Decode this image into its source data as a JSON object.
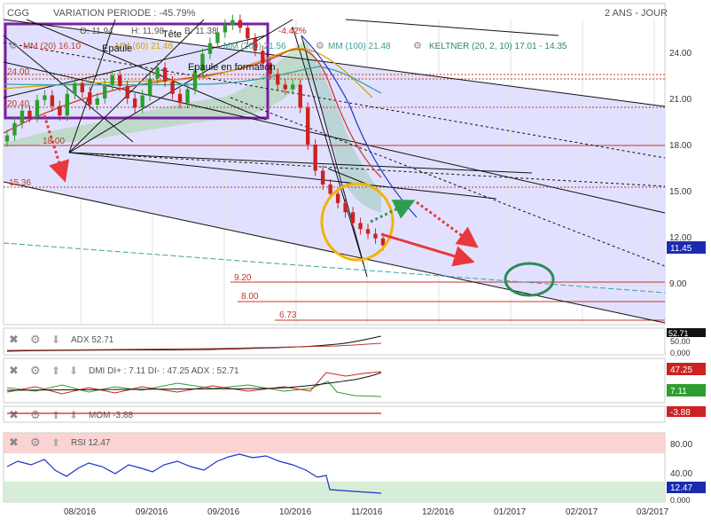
{
  "header": {
    "symbol": "CGG",
    "variation": "VARIATION PERIODE : -45.79%",
    "period": "2 ANS - JOUR"
  },
  "ohlc": {
    "o": "O: 11.94",
    "h": "H: 11.98",
    "b": "B: 11.38",
    "c": "C: 11.45",
    "change": "-4.42%"
  },
  "indicators": {
    "mm20": "MM (20) 16.10",
    "mm60": "MM (60) 21.48",
    "mm200": "MM (200) 21.56",
    "mm100": "MM (100) 21.48",
    "keltner": "KELTNER (20, 2, 10) 17.01 - 14.35"
  },
  "annotations": {
    "epaule_left": "Epaule",
    "tete": "Tête",
    "epaule_right": "Epaule en formation",
    "level_1800": "18.00",
    "level_1536": "15.36",
    "level_920": "9.20",
    "level_800": "8.00",
    "level_673": "6.73",
    "level_2400": "24.00",
    "level_2040": "20.40"
  },
  "price_axis": {
    "ticks": [
      "24.00",
      "21.00",
      "18.00",
      "15.00",
      "12.00",
      "9.00"
    ],
    "last": "11.45"
  },
  "x_axis": {
    "ticks": [
      "08/2016",
      "09/2016",
      "09/2016",
      "10/2016",
      "11/2016",
      "12/2016",
      "01/2017",
      "02/2017",
      "03/2017"
    ]
  },
  "panels": {
    "adx": {
      "label": "ADX 52.71",
      "value": "52.71",
      "ticks": [
        "50.00",
        "0.000"
      ]
    },
    "dmi": {
      "label": "DMI DI+ : 7.11 DI- : 47.25 ADX : 52.71",
      "di_minus": "47.25",
      "di_plus": "7.11"
    },
    "mom": {
      "label": "MOM -3.88",
      "value": "-3.88"
    },
    "rsi": {
      "label": "RSI 12.47",
      "value": "12.47",
      "ticks": [
        "80.00",
        "40.00",
        "0.000"
      ]
    }
  },
  "colors": {
    "up": "#2e9e2e",
    "down": "#cc2222",
    "channel": "#d8d8ff",
    "mm20": "#d23a2a",
    "mm60": "#d6a000",
    "mm200": "#3aa0a0",
    "rsi_line": "#1a33cc",
    "highlight_circle": "#f2b400",
    "target_circle": "#2e8b57",
    "arrow_red": "#e8383d",
    "arrow_green": "#2e9e4e"
  },
  "chart_data": {
    "type": "candlestick",
    "title": "CGG",
    "x_ticks": [
      "08/2016",
      "09/2016",
      "09/2016",
      "10/2016",
      "11/2016",
      "12/2016",
      "01/2017",
      "02/2017",
      "03/2017"
    ],
    "y_ticks": [
      24.0,
      21.0,
      18.0,
      15.0,
      12.0,
      9.0
    ],
    "ylim": [
      5.5,
      26.5
    ],
    "last_price": 11.45,
    "horizontal_levels": [
      20.4,
      18.0,
      15.36,
      9.2,
      8.0,
      6.73
    ],
    "close_series": [
      18.6,
      19.4,
      20.2,
      19.8,
      20.9,
      21.2,
      20.5,
      19.9,
      21.3,
      22.0,
      21.4,
      20.6,
      21.0,
      21.9,
      22.5,
      21.8,
      21.0,
      20.4,
      21.2,
      22.3,
      23.0,
      22.1,
      21.3,
      20.7,
      21.6,
      22.8,
      23.9,
      24.6,
      25.3,
      25.8,
      26.1,
      25.6,
      24.9,
      24.1,
      23.3,
      22.6,
      21.9,
      21.6,
      21.9,
      20.4,
      18.0,
      16.3,
      15.4,
      14.8,
      14.2,
      13.6,
      12.9,
      12.5,
      12.2,
      11.9,
      11.45
    ]
  }
}
